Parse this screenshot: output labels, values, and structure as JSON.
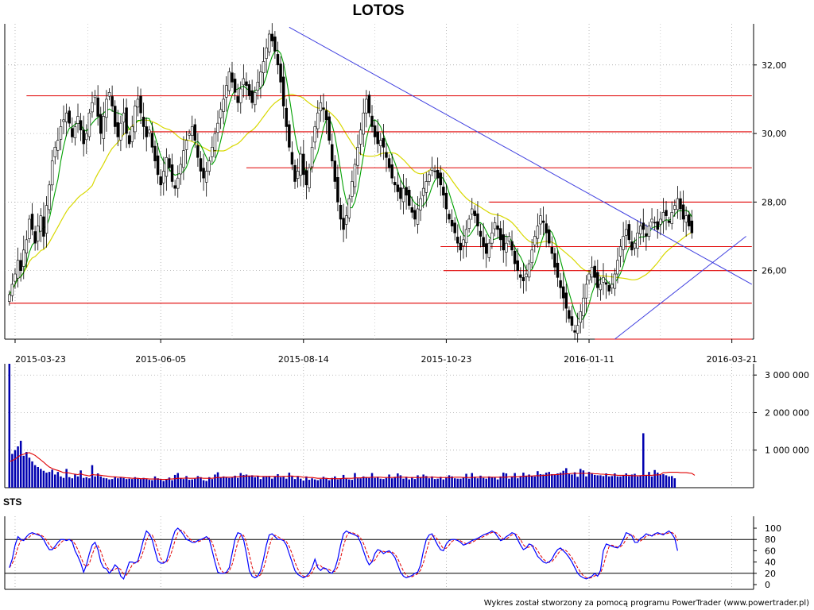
{
  "title": "LOTOS",
  "footer": "Wykres został stworzony za pomocą programu PowerTrader (www.powertrader.pl)",
  "colors": {
    "candle": "#000000",
    "ma_short": "#00a000",
    "ma_long": "#d8d800",
    "resistance": "#e00000",
    "trendline": "#4040e0",
    "volume": "#0000b0",
    "volume_avg": "#e00000",
    "sts_k": "#0000ff",
    "sts_d": "#e00000"
  },
  "chart_data": [
    {
      "type": "candlestick",
      "name": "price",
      "title": "LOTOS",
      "x_ticks": [
        "2015-03-23",
        "2015-06-05",
        "2015-08-14",
        "2015-10-23",
        "2016-01-11",
        "2016-03-21"
      ],
      "y_ticks": [
        "26,00",
        "28,00",
        "30,00",
        "32,00"
      ],
      "y_tick_values": [
        26,
        28,
        30,
        32
      ],
      "ylim": [
        24.0,
        33.2
      ],
      "n_sessions": 260,
      "x_tick_sessions": [
        2,
        53,
        103,
        153,
        203,
        253
      ],
      "closes": [
        25.3,
        25.6,
        25.9,
        26.3,
        26.0,
        26.6,
        26.9,
        27.5,
        27.2,
        26.8,
        27.3,
        27.6,
        27.0,
        27.9,
        28.5,
        29.2,
        29.6,
        29.8,
        30.2,
        30.4,
        30.6,
        30.3,
        29.9,
        30.2,
        30.5,
        30.1,
        29.7,
        30.0,
        30.6,
        30.9,
        31.1,
        30.5,
        30.0,
        30.5,
        31.0,
        31.2,
        30.8,
        30.2,
        29.9,
        30.3,
        30.6,
        30.0,
        29.7,
        30.2,
        30.8,
        31.0,
        30.6,
        30.2,
        29.9,
        30.1,
        29.6,
        29.2,
        28.8,
        28.5,
        28.9,
        29.3,
        29.0,
        28.6,
        28.4,
        28.7,
        29.1,
        29.5,
        29.8,
        30.0,
        30.2,
        29.8,
        29.3,
        28.9,
        28.7,
        28.9,
        29.2,
        29.6,
        30.0,
        30.3,
        30.7,
        31.0,
        31.4,
        31.8,
        31.5,
        31.2,
        30.9,
        31.3,
        31.6,
        31.4,
        31.1,
        30.9,
        31.2,
        31.5,
        31.8,
        32.1,
        32.5,
        32.9,
        32.7,
        32.4,
        32.0,
        31.5,
        30.8,
        30.2,
        29.6,
        29.1,
        28.6,
        28.9,
        29.4,
        28.8,
        28.5,
        29.0,
        29.6,
        30.2,
        30.6,
        30.9,
        30.7,
        30.4,
        29.8,
        29.2,
        28.6,
        28.0,
        27.5,
        27.2,
        27.6,
        28.1,
        28.6,
        29.1,
        29.6,
        30.1,
        30.6,
        31.0,
        30.6,
        30.2,
        29.9,
        29.7,
        29.8,
        29.6,
        29.3,
        29.0,
        28.7,
        28.5,
        28.3,
        28.1,
        28.4,
        28.2,
        27.9,
        27.7,
        27.5,
        27.8,
        28.1,
        28.4,
        28.6,
        28.8,
        29.0,
        28.9,
        28.7,
        28.5,
        28.2,
        27.8,
        27.5,
        27.3,
        27.1,
        26.8,
        26.6,
        26.9,
        27.2,
        27.5,
        27.8,
        27.6,
        27.3,
        27.0,
        26.7,
        26.5,
        26.8,
        27.1,
        27.4,
        27.2,
        26.9,
        26.6,
        26.8,
        27.0,
        26.6,
        26.2,
        26.0,
        25.8,
        25.7,
        25.9,
        26.2,
        26.6,
        27.0,
        27.3,
        27.6,
        27.4,
        27.1,
        26.8,
        26.5,
        26.1,
        25.8,
        25.5,
        25.2,
        24.9,
        24.6,
        24.4,
        24.2,
        24.4,
        24.8,
        25.2,
        25.6,
        25.9,
        26.1,
        25.8,
        25.5,
        25.6,
        25.8,
        25.6,
        25.4,
        25.6,
        25.9,
        26.3,
        26.7,
        27.0,
        27.2,
        26.9,
        26.6,
        26.8,
        27.1,
        27.3,
        27.2,
        27.0,
        27.3,
        27.5,
        27.4,
        27.2,
        27.5,
        27.7,
        27.6,
        27.4,
        27.7,
        27.9,
        28.1,
        27.8,
        27.5,
        27.6,
        27.3,
        27.1
      ],
      "resistance_levels": [
        {
          "y": 31.1,
          "from": 6,
          "to": 260
        },
        {
          "y": 30.05,
          "from": 48,
          "to": 260
        },
        {
          "y": 29.0,
          "from": 83,
          "to": 260
        },
        {
          "y": 28.0,
          "from": 168,
          "to": 260
        },
        {
          "y": 26.7,
          "from": 151,
          "to": 260
        },
        {
          "y": 26.0,
          "from": 152,
          "to": 260
        },
        {
          "y": 25.05,
          "from": 0,
          "to": 260
        },
        {
          "y": 24.0,
          "from": 205,
          "to": 260
        }
      ],
      "trendlines": [
        {
          "x1": 98,
          "y1": 33.1,
          "x2": 260,
          "y2": 25.6
        },
        {
          "x1": 212,
          "y1": 24.0,
          "x2": 258,
          "y2": 27.0
        }
      ]
    },
    {
      "type": "bar",
      "name": "volume",
      "y_ticks": [
        "1 000 000",
        "2 000 000",
        "3 000 000"
      ],
      "y_tick_values": [
        1000000,
        2000000,
        3000000
      ],
      "ylim": [
        0,
        3300000
      ],
      "values": [
        3300000,
        900000,
        1000000,
        1100000,
        1250000,
        850000,
        950000,
        800000,
        700000,
        600000,
        550000,
        500000,
        450000,
        400000,
        420000,
        480000,
        350000,
        420000,
        300000,
        260000,
        500000,
        280000,
        250000,
        350000,
        300000,
        460000,
        260000,
        280000,
        250000,
        600000,
        300000,
        380000,
        300000,
        260000,
        250000,
        220000,
        230000,
        280000,
        250000,
        270000,
        260000,
        230000,
        240000,
        230000,
        280000,
        240000,
        230000,
        260000,
        230000,
        210000,
        200000,
        300000,
        250000,
        210000,
        180000,
        220000,
        270000,
        200000,
        340000,
        390000,
        250000,
        230000,
        310000,
        210000,
        220000,
        240000,
        310000,
        280000,
        200000,
        180000,
        280000,
        230000,
        350000,
        410000,
        280000,
        300000,
        280000,
        260000,
        270000,
        320000,
        260000,
        390000,
        340000,
        350000,
        320000,
        330000,
        280000,
        310000,
        230000,
        290000,
        300000,
        310000,
        240000,
        300000,
        360000,
        280000,
        290000,
        240000,
        400000,
        300000,
        230000,
        310000,
        240000,
        190000,
        300000,
        210000,
        250000,
        220000,
        200000,
        230000,
        290000,
        240000,
        200000,
        260000,
        300000,
        220000,
        250000,
        340000,
        240000,
        220000,
        210000,
        390000,
        250000,
        250000,
        300000,
        280000,
        260000,
        390000,
        260000,
        290000,
        240000,
        230000,
        260000,
        350000,
        250000,
        290000,
        380000,
        330000,
        240000,
        290000,
        220000,
        280000,
        230000,
        330000,
        280000,
        350000,
        310000,
        250000,
        300000,
        230000,
        240000,
        290000,
        220000,
        280000,
        330000,
        300000,
        250000,
        240000,
        240000,
        280000,
        370000,
        240000,
        390000,
        290000,
        250000,
        320000,
        260000,
        240000,
        300000,
        280000,
        270000,
        220000,
        300000,
        400000,
        380000,
        240000,
        300000,
        390000,
        250000,
        300000,
        400000,
        310000,
        350000,
        310000,
        300000,
        440000,
        360000,
        350000,
        400000,
        420000,
        360000,
        350000,
        380000,
        400000,
        450000,
        520000,
        370000,
        350000,
        410000,
        290000,
        500000,
        460000,
        300000,
        420000,
        390000,
        340000,
        330000,
        330000,
        310000,
        380000,
        300000,
        310000,
        380000,
        300000,
        300000,
        320000,
        380000,
        310000,
        350000,
        370000,
        300000,
        330000,
        1450000,
        330000,
        420000,
        300000,
        470000,
        400000,
        350000,
        360000,
        330000,
        300000,
        310000,
        250000
      ],
      "avg_values": [
        700000,
        720000,
        760000,
        820000,
        870000,
        890000,
        920000,
        930000,
        900000,
        860000,
        800000,
        740000,
        680000,
        610000,
        550000,
        510000,
        480000,
        460000,
        430000,
        400000,
        400000,
        390000,
        370000,
        360000,
        350000,
        370000,
        340000,
        330000,
        310000,
        350000,
        340000,
        340000,
        330000,
        320000,
        310000,
        300000,
        290000,
        290000,
        280000,
        280000,
        270000,
        260000,
        260000,
        250000,
        250000,
        250000,
        240000,
        240000,
        240000,
        230000,
        230000,
        230000,
        230000,
        220000,
        220000,
        220000,
        230000,
        230000,
        240000,
        250000,
        250000,
        250000,
        260000,
        250000,
        250000,
        250000,
        260000,
        260000,
        250000,
        250000,
        250000,
        250000,
        260000,
        270000,
        270000,
        280000,
        280000,
        280000,
        280000,
        290000,
        290000,
        300000,
        300000,
        310000,
        310000,
        310000,
        310000,
        310000,
        300000,
        300000,
        300000,
        300000,
        300000,
        300000,
        300000,
        300000,
        300000,
        300000,
        310000,
        310000,
        300000,
        300000,
        290000,
        280000,
        280000,
        270000,
        270000,
        260000,
        250000,
        250000,
        250000,
        250000,
        240000,
        240000,
        240000,
        240000,
        240000,
        250000,
        250000,
        250000,
        250000,
        260000,
        260000,
        260000,
        270000,
        270000,
        270000,
        280000,
        280000,
        280000,
        280000,
        270000,
        270000,
        270000,
        270000,
        270000,
        280000,
        280000,
        280000,
        280000,
        270000,
        270000,
        270000,
        270000,
        270000,
        280000,
        280000,
        280000,
        280000,
        280000,
        270000,
        270000,
        270000,
        270000,
        270000,
        270000,
        280000,
        280000,
        280000,
        270000,
        270000,
        270000,
        270000,
        280000,
        280000,
        280000,
        280000,
        280000,
        280000,
        280000,
        280000,
        280000,
        280000,
        280000,
        280000,
        290000,
        290000,
        290000,
        290000,
        300000,
        300000,
        310000,
        310000,
        310000,
        320000,
        320000,
        320000,
        330000,
        330000,
        340000,
        340000,
        350000,
        350000,
        360000,
        360000,
        370000,
        370000,
        380000,
        380000,
        380000,
        380000,
        380000,
        380000,
        380000,
        380000,
        370000,
        370000,
        360000,
        360000,
        350000,
        350000,
        340000,
        340000,
        330000,
        330000,
        330000,
        330000,
        330000,
        320000,
        320000,
        320000,
        320000,
        330000,
        330000,
        330000,
        330000,
        340000,
        340000,
        350000,
        400000,
        400000,
        410000,
        410000,
        410000,
        410000,
        400000,
        400000,
        400000,
        390000,
        380000,
        330000
      ]
    },
    {
      "type": "line",
      "name": "STS",
      "title": "STS",
      "y_ticks": [
        "0",
        "20",
        "40",
        "60",
        "80",
        "100"
      ],
      "y_tick_values": [
        0,
        20,
        40,
        60,
        80,
        100
      ],
      "ylim": [
        0,
        100
      ],
      "reference_lines": [
        20,
        80
      ],
      "k_values": [
        30,
        45,
        70,
        85,
        80,
        78,
        85,
        90,
        92,
        90,
        88,
        86,
        80,
        70,
        62,
        62,
        68,
        75,
        80,
        80,
        78,
        80,
        76,
        60,
        50,
        38,
        22,
        35,
        55,
        70,
        75,
        62,
        40,
        30,
        28,
        20,
        26,
        35,
        30,
        15,
        10,
        25,
        40,
        40,
        38,
        42,
        60,
        80,
        95,
        90,
        80,
        60,
        42,
        38,
        38,
        42,
        60,
        80,
        95,
        100,
        95,
        88,
        80,
        78,
        75,
        75,
        78,
        80,
        82,
        85,
        80,
        60,
        40,
        22,
        20,
        20,
        22,
        30,
        55,
        80,
        92,
        90,
        80,
        55,
        25,
        15,
        12,
        15,
        25,
        45,
        70,
        88,
        90,
        85,
        80,
        80,
        78,
        70,
        55,
        40,
        25,
        18,
        15,
        12,
        15,
        20,
        30,
        45,
        30,
        25,
        30,
        28,
        22,
        20,
        28,
        45,
        70,
        90,
        95,
        92,
        90,
        88,
        85,
        75,
        60,
        45,
        35,
        40,
        55,
        62,
        60,
        55,
        58,
        60,
        55,
        48,
        35,
        22,
        15,
        12,
        14,
        16,
        20,
        22,
        35,
        60,
        80,
        88,
        90,
        80,
        70,
        62,
        60,
        72,
        78,
        80,
        80,
        78,
        75,
        70,
        72,
        75,
        78,
        80,
        82,
        85,
        88,
        90,
        92,
        95,
        92,
        85,
        78,
        80,
        85,
        88,
        92,
        90,
        80,
        70,
        62,
        65,
        72,
        70,
        60,
        50,
        45,
        40,
        38,
        40,
        45,
        55,
        62,
        65,
        60,
        55,
        48,
        40,
        30,
        20,
        15,
        12,
        10,
        12,
        15,
        20,
        15,
        25,
        60,
        72,
        70,
        68,
        66,
        65,
        70,
        80,
        92,
        90,
        86,
        75,
        75,
        82,
        85,
        90,
        88,
        86,
        90,
        92,
        90,
        88,
        92,
        95,
        90,
        82,
        60
      ]
    }
  ]
}
